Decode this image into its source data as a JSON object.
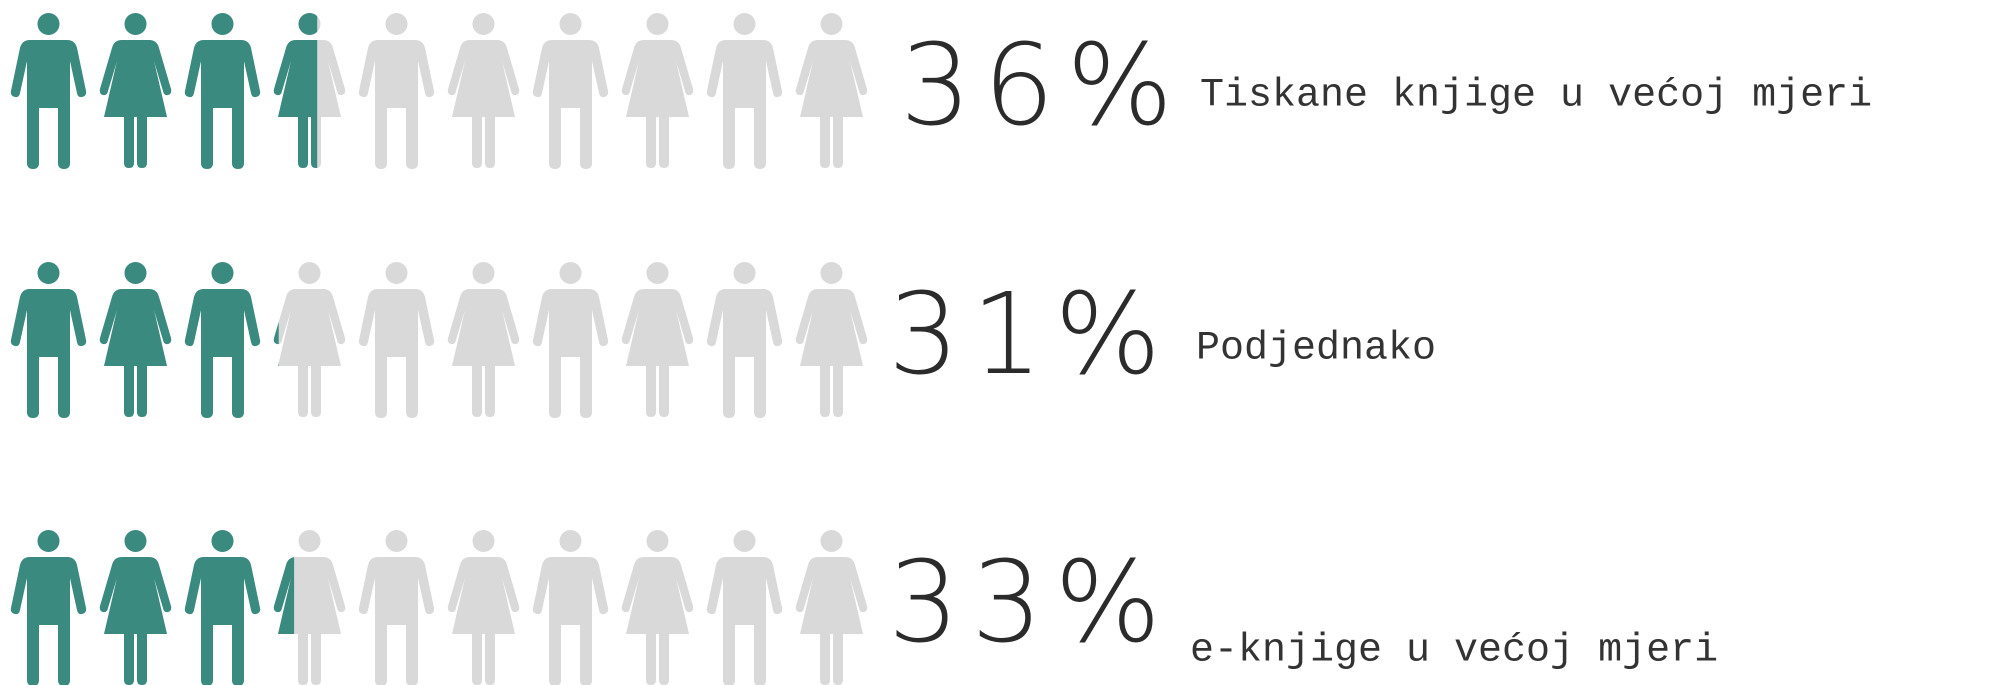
{
  "chart_data": {
    "type": "pictograph",
    "categories": [
      "Tiskane knjige u većoj mjeri",
      "Podjednako",
      "e-knjige u većoj mjeri"
    ],
    "values": [
      36,
      31,
      33
    ],
    "value_labels": [
      "36%",
      "31%",
      "33%"
    ],
    "xlim": [
      0,
      100
    ],
    "color": "#3a8a80",
    "empty_color": "#d9d9d9"
  }
}
